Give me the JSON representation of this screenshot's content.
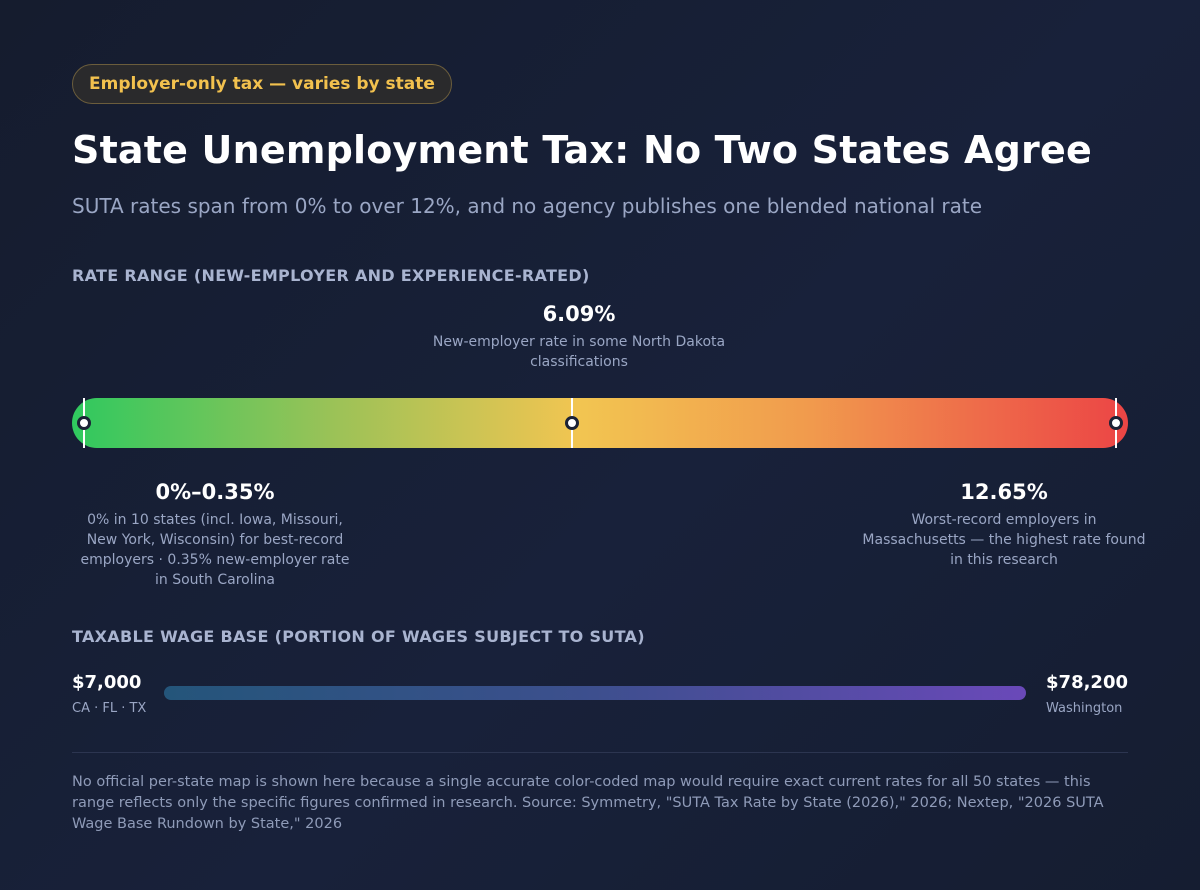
{
  "badge": "Employer-only tax — varies by state",
  "title": "State Unemployment Tax: No Two States Agree",
  "subtitle": "SUTA rates span from 0% to over 12%, and no agency publishes one blended national rate",
  "rate_section": {
    "label": "RATE RANGE (NEW-EMPLOYER AND EXPERIENCE-RATED)",
    "scale_min": 0,
    "scale_max": 12.65,
    "low": {
      "value_label": "0%–0.35%",
      "description": "0% in 10 states (incl. Iowa, Missouri, New York, Wisconsin) for best-record employers · 0.35% new-employer rate in South Carolina",
      "rate_pct": 0
    },
    "mid": {
      "value_label": "6.09%",
      "description": "New-employer rate in some North Dakota classifications",
      "rate_pct": 6.09
    },
    "high": {
      "value_label": "12.65%",
      "description": "Worst-record employers in Massachusetts — the highest rate found in this research",
      "rate_pct": 12.65
    },
    "gradient_colors": [
      "#2fc95f",
      "#f2c551",
      "#ec4545"
    ]
  },
  "wage_section": {
    "label": "TAXABLE WAGE BASE (PORTION OF WAGES SUBJECT TO SUTA)",
    "min_value": "$7,000",
    "min_states": "CA · FL · TX",
    "max_value": "$78,200",
    "max_states": "Washington",
    "gradient_colors": [
      "#24557a",
      "#6a49b9"
    ]
  },
  "footnote": "No official per-state map is shown here because a single accurate color-coded map would require exact current rates for all 50 states — this range reflects only the specific figures confirmed in research. Source: Symmetry, \"SUTA Tax Rate by State (2026),\" 2026; Nextep, \"2026 SUTA Wage Base Rundown by State,\" 2026",
  "colors": {
    "accent": "#f2c14e",
    "background": "#151c2e",
    "muted_text": "#9aa6c4"
  }
}
